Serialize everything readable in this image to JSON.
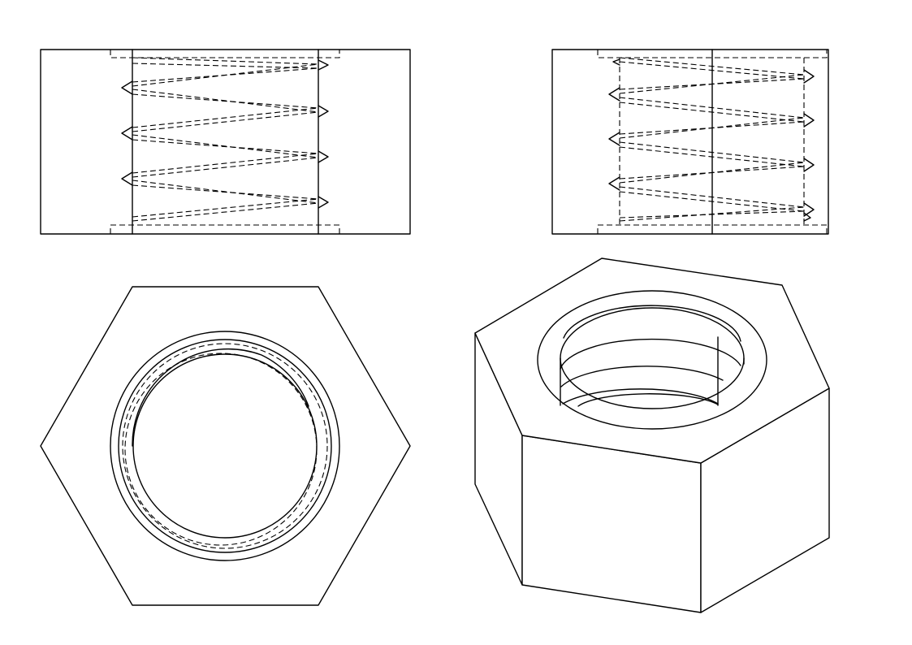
{
  "drawing": {
    "subject": "hex nut",
    "views": [
      "front",
      "side",
      "top",
      "isometric"
    ],
    "line_color": "#000000",
    "background_color": "#ffffff",
    "hidden_line_style": "dashed",
    "front_view_thread_crests": 4,
    "side_view_thread_crests": 4
  }
}
